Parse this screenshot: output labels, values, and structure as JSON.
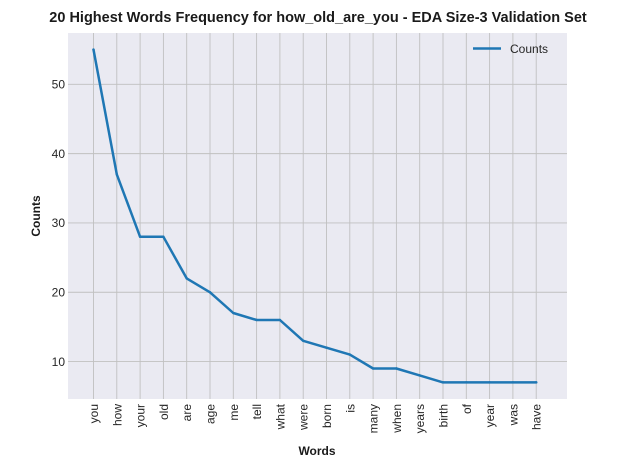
{
  "chart_data": {
    "type": "line",
    "title": "20 Highest Words Frequency for how_old_are_you - EDA Size-3 Validation Set",
    "xlabel": "Words",
    "ylabel": "Counts",
    "categories": [
      "you",
      "how",
      "your",
      "old",
      "are",
      "age",
      "me",
      "tell",
      "what",
      "were",
      "born",
      "is",
      "many",
      "when",
      "years",
      "birth",
      "of",
      "year",
      "was",
      "have"
    ],
    "series": [
      {
        "name": "Counts",
        "values": [
          55,
          37,
          28,
          28,
          22,
          20,
          17,
          16,
          16,
          13,
          12,
          11,
          9,
          9,
          8,
          7,
          7,
          7,
          7,
          7
        ],
        "color": "#1f77b4"
      }
    ],
    "ylim": [
      4.6,
      57.4
    ],
    "yticks": [
      "10",
      "20",
      "30",
      "40",
      "50"
    ],
    "grid": true,
    "legend_position": "top-right",
    "plot_background": "#eaeaf2",
    "grid_color": "#c0c0c0"
  }
}
